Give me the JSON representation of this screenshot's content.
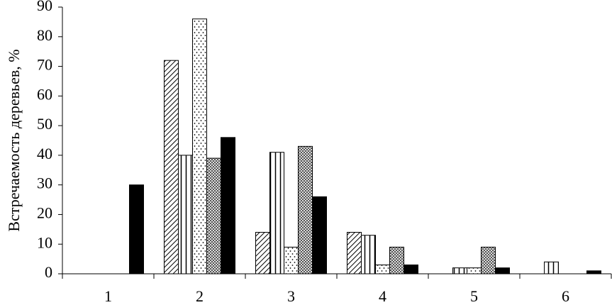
{
  "chart_data": {
    "type": "bar",
    "y_label": "Встречаемость деревьев, %",
    "categories": [
      "1",
      "2",
      "3",
      "4",
      "5",
      "6"
    ],
    "ylim": [
      0,
      90
    ],
    "yticks": [
      0,
      10,
      20,
      30,
      40,
      50,
      60,
      70,
      80,
      90
    ],
    "series": [
      {
        "pattern": "diagonal",
        "color": "#000000",
        "values": [
          0,
          72,
          14,
          14,
          0,
          0
        ]
      },
      {
        "pattern": "vertical",
        "color": "#000000",
        "values": [
          0,
          40,
          41,
          13,
          2,
          4
        ]
      },
      {
        "pattern": "dots",
        "color": "#000000",
        "values": [
          0,
          86,
          9,
          3,
          2,
          0
        ]
      },
      {
        "pattern": "crosshatch",
        "color": "#000000",
        "values": [
          0,
          39,
          43,
          9,
          9,
          0
        ]
      },
      {
        "pattern": "solid",
        "color": "#000000",
        "values": [
          30,
          46,
          26,
          3,
          2,
          1
        ]
      }
    ]
  }
}
